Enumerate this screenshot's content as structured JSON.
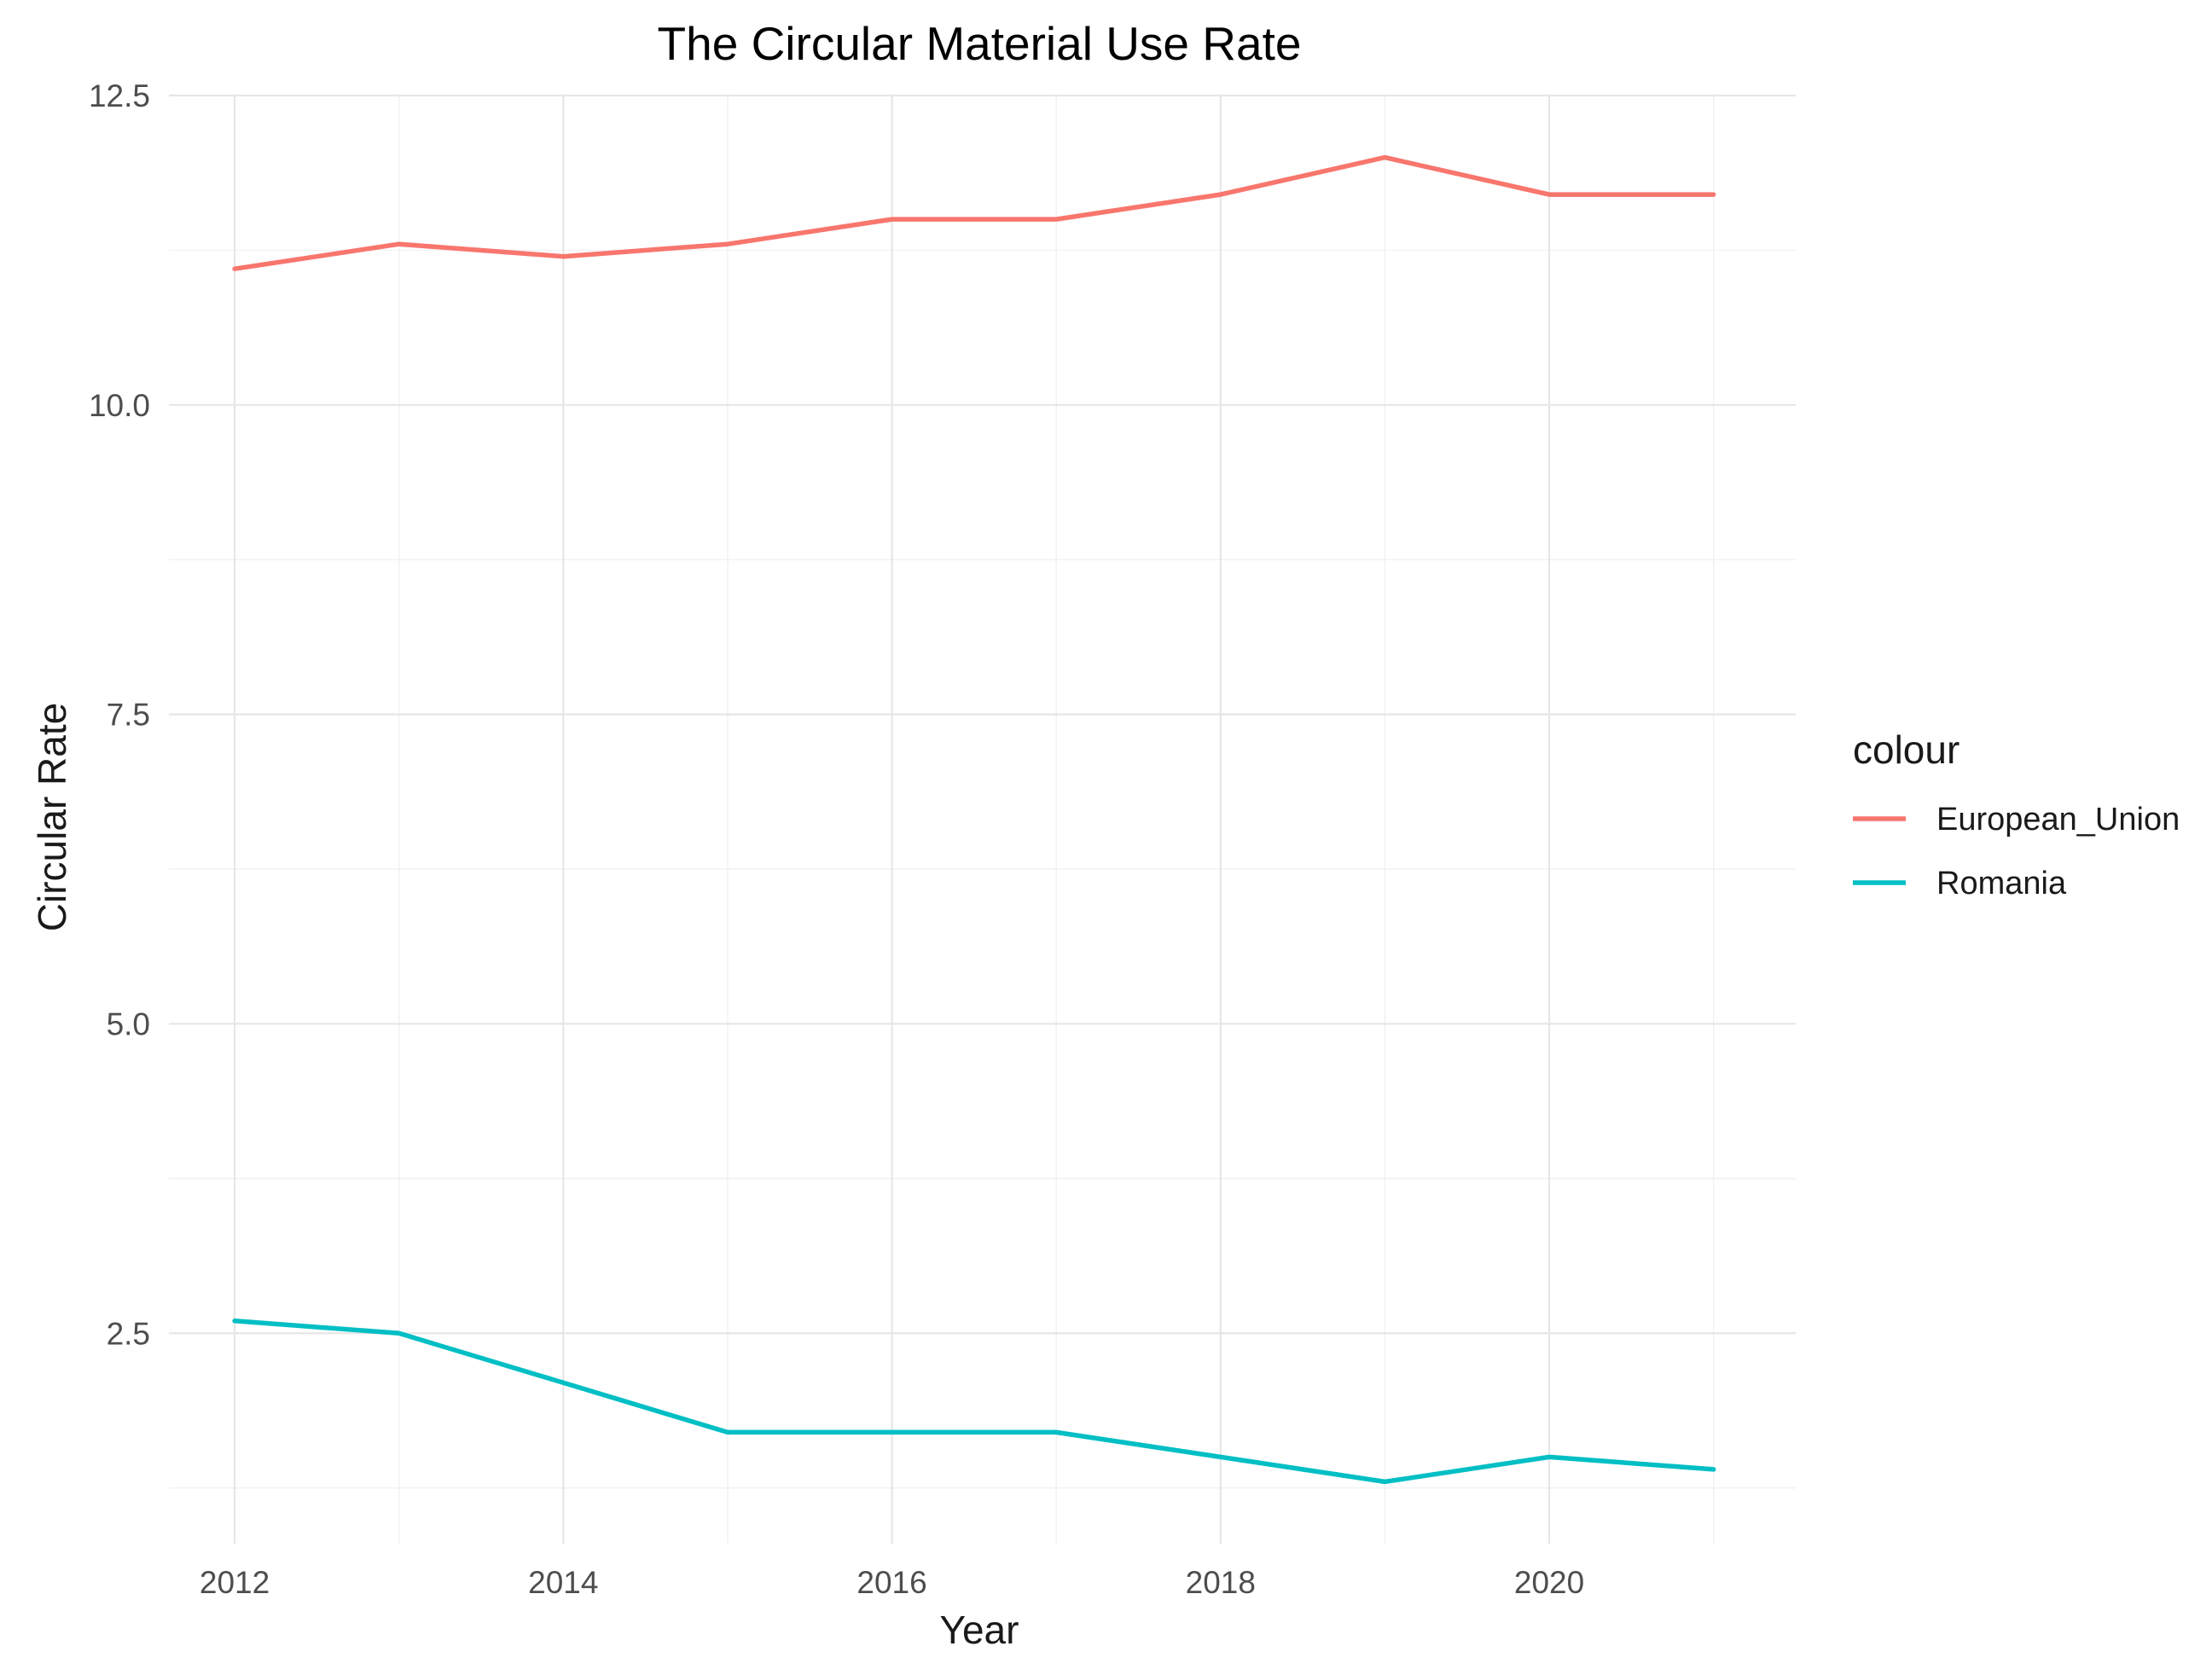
{
  "chart_data": {
    "type": "line",
    "title": "The Circular Material Use Rate",
    "xlabel": "Year",
    "ylabel": "Circular Rate",
    "x": [
      2012,
      2013,
      2014,
      2015,
      2016,
      2017,
      2018,
      2019,
      2020,
      2021
    ],
    "xlim": [
      2011.6,
      2021.5
    ],
    "ylim": [
      0.8,
      12.5
    ],
    "x_ticks": [
      2012,
      2014,
      2016,
      2018,
      2020
    ],
    "x_tick_labels": [
      "2012",
      "2014",
      "2016",
      "2018",
      "2020"
    ],
    "y_ticks": [
      2.5,
      5.0,
      7.5,
      10.0,
      12.5
    ],
    "y_tick_labels": [
      "2.5",
      "5.0",
      "7.5",
      "10.0",
      "12.5"
    ],
    "grid": true,
    "legend": {
      "title": "colour",
      "position": "right"
    },
    "series": [
      {
        "name": "European_Union",
        "color": "#F8766D",
        "values": [
          11.1,
          11.3,
          11.2,
          11.3,
          11.5,
          11.5,
          11.7,
          12.0,
          11.7,
          11.7
        ]
      },
      {
        "name": "Romania",
        "color": "#00BFC4",
        "values": [
          2.6,
          2.5,
          2.1,
          1.7,
          1.7,
          1.7,
          1.5,
          1.3,
          1.5,
          1.4
        ]
      }
    ]
  }
}
